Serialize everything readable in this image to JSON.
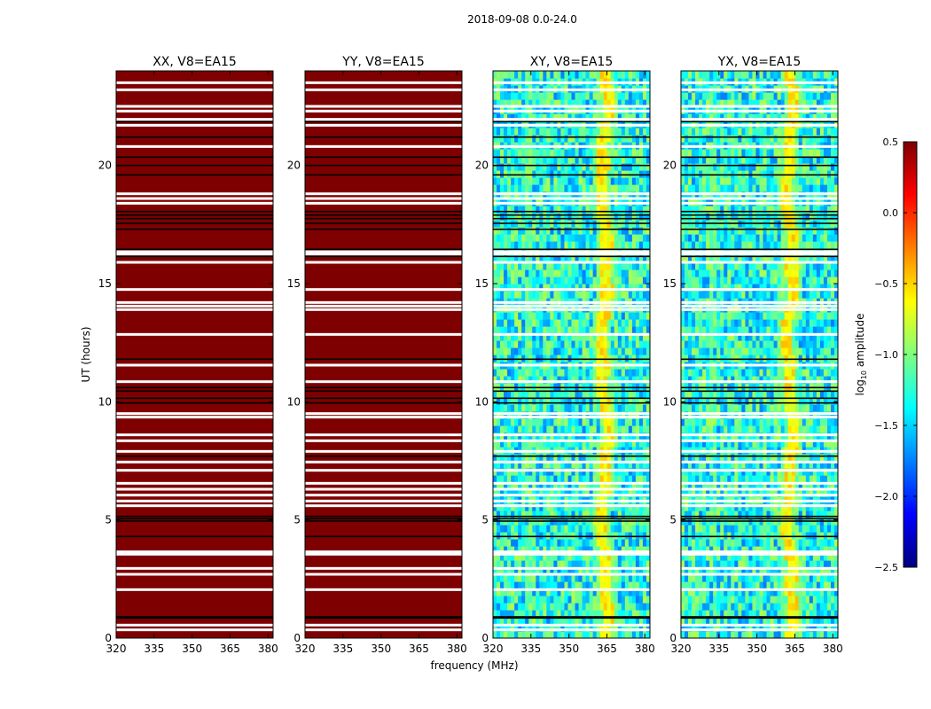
{
  "figure_title": "2018-09-08 0.0-24.0",
  "chart_data": [
    {
      "type": "heatmap",
      "title": "XX, V8=EA15",
      "xlabel": "",
      "ylabel": "UT (hours)",
      "xlim": [
        320,
        382
      ],
      "ylim": [
        0,
        24
      ],
      "xticks": [
        320,
        335,
        350,
        365,
        380
      ],
      "yticks": [
        0,
        5,
        10,
        15,
        20
      ],
      "fill": "saturated",
      "fill_level": 0.5
    },
    {
      "type": "heatmap",
      "title": "YY, V8=EA15",
      "xlabel": "frequency (MHz)",
      "ylabel": "",
      "xlim": [
        320,
        382
      ],
      "ylim": [
        0,
        24
      ],
      "xticks": [
        320,
        335,
        350,
        365,
        380
      ],
      "yticks": [
        0,
        5,
        10,
        15,
        20
      ],
      "fill": "saturated",
      "fill_level": 0.5
    },
    {
      "type": "heatmap",
      "title": "XY, V8=EA15",
      "xlabel": "",
      "ylabel": "",
      "xlim": [
        320,
        382
      ],
      "ylim": [
        0,
        24
      ],
      "xticks": [
        320,
        335,
        350,
        365,
        380
      ],
      "yticks": [
        0,
        5,
        10,
        15,
        20
      ],
      "fill": "noise",
      "background_level": -1.3,
      "rfi_feature": {
        "center_freq": [
          363,
          365
        ],
        "level": -0.6
      },
      "secondary_feature": {
        "center_freq": 334,
        "level": -1.1
      }
    },
    {
      "type": "heatmap",
      "title": "YX, V8=EA15",
      "xlabel": "",
      "ylabel": "",
      "xlim": [
        320,
        382
      ],
      "ylim": [
        0,
        24
      ],
      "xticks": [
        320,
        335,
        350,
        365,
        380
      ],
      "yticks": [
        0,
        5,
        10,
        15,
        20
      ],
      "fill": "noise",
      "background_level": -1.3,
      "rfi_feature": {
        "center_freq": [
          362,
          364
        ],
        "level": -0.6
      },
      "secondary_feature": {
        "center_freq": 333,
        "level": -1.1
      }
    }
  ],
  "flagged_hours_white": [
    0.35,
    0.55,
    2.05,
    2.7,
    2.95,
    3.55,
    3.65,
    5.6,
    5.8,
    6.05,
    6.3,
    6.55,
    7.1,
    7.45,
    7.9,
    8.35,
    8.6,
    9.35,
    9.5,
    10.85,
    11.55,
    12.85,
    13.9,
    14.05,
    14.2,
    14.75,
    15.9,
    16.25,
    16.35,
    18.4,
    18.6,
    18.8,
    20.8,
    21.7,
    21.95,
    22.3,
    22.5,
    23.2,
    23.5
  ],
  "flagged_hours_black": [
    0.85,
    0.9,
    4.3,
    4.95,
    5.05,
    5.15,
    7.7,
    9.95,
    10.15,
    10.45,
    10.6,
    11.8,
    16.15,
    16.45,
    17.3,
    17.55,
    17.75,
    17.9,
    18.05,
    19.6,
    20.0,
    20.35,
    21.2,
    21.85
  ],
  "colorbar": {
    "label": "log10 amplitude",
    "label_main": "log",
    "label_sub": "10",
    "label_tail": " amplitude",
    "min": -2.5,
    "max": 0.5,
    "ticks": [
      0.5,
      0.0,
      -0.5,
      -1.0,
      -1.5,
      -2.0,
      -2.5
    ],
    "tick_labels": [
      "0.5",
      "0.0",
      "−0.5",
      "−1.0",
      "−1.5",
      "−2.0",
      "−2.5"
    ],
    "colormap": "jet",
    "colors": [
      "#00007f",
      "#0000ff",
      "#007fff",
      "#00ffff",
      "#7fff7f",
      "#ffff00",
      "#ff7f00",
      "#ff0000",
      "#7f0000"
    ]
  }
}
